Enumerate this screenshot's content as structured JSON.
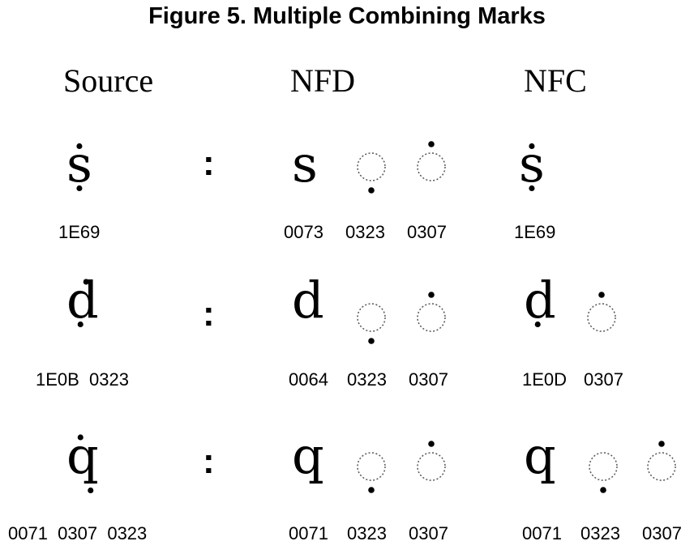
{
  "title": "Figure 5. Multiple Combining Marks",
  "headers": {
    "source": "Source",
    "nfd": "NFD",
    "nfc": "NFC"
  },
  "colon": ":",
  "rows": [
    {
      "source": {
        "glyph": "ṩ",
        "codes": "1E69"
      },
      "nfd": {
        "base": "s",
        "codes": [
          "0073",
          "0323",
          "0307"
        ]
      },
      "nfc": {
        "glyph": "ṩ",
        "codes": [
          "1E69"
        ]
      }
    },
    {
      "source": {
        "glyph": "ḍ̇",
        "codes": "1E0B  0323"
      },
      "nfd": {
        "base": "d",
        "codes": [
          "0064",
          "0323",
          "0307"
        ]
      },
      "nfc": {
        "glyph": "ḍ",
        "codes": [
          "1E0D",
          "0307"
        ]
      }
    },
    {
      "source": {
        "glyph": "q̣̇",
        "codes": "0071  0307  0323"
      },
      "nfd": {
        "base": "q",
        "codes": [
          "0071",
          "0323",
          "0307"
        ]
      },
      "nfc": {
        "base": "q",
        "codes": [
          "0071",
          "0323",
          "0307"
        ]
      }
    }
  ]
}
